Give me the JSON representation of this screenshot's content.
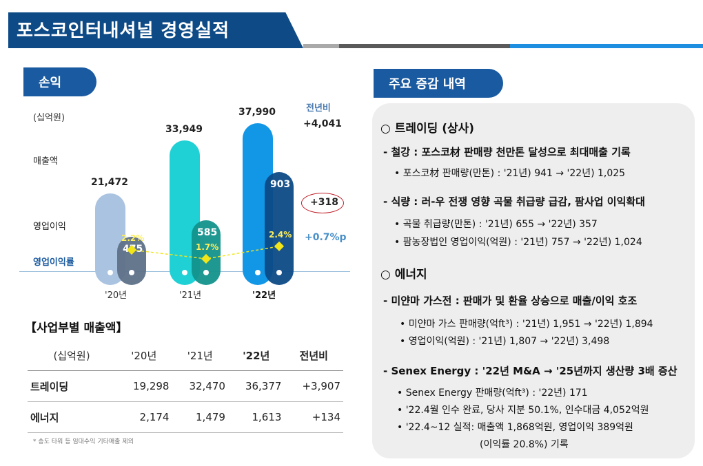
{
  "header": {
    "title": "포스코인터내셔널 경영실적"
  },
  "left": {
    "section_label": "손익",
    "unit": "(십억원)",
    "yoy_header": "전년비",
    "rows": {
      "revenue": "매출액",
      "op_income": "영업이익",
      "op_margin": "영업이익률"
    },
    "yoy": {
      "revenue": "+4,041",
      "op_income": "+318",
      "op_margin": "+0.7%p"
    }
  },
  "chart_data": {
    "type": "bar",
    "categories": [
      "'20년",
      "'21년",
      "'22년"
    ],
    "series": [
      {
        "name": "매출액",
        "values": [
          21472,
          33949,
          37990
        ],
        "labels": [
          "21,472",
          "33,949",
          "37,990"
        ]
      },
      {
        "name": "영업이익",
        "values": [
          475,
          585,
          903
        ],
        "labels": [
          "475",
          "585",
          "903"
        ]
      },
      {
        "name": "영업이익률",
        "values": [
          2.2,
          1.7,
          2.4
        ],
        "labels": [
          "2.2%",
          "1.7%",
          "2.4%"
        ]
      }
    ],
    "colors": {
      "revenue": [
        "#a9c3e0",
        "#1fd0d4",
        "#1296e6"
      ],
      "op_income": [
        "#5e7188",
        "#13928c",
        "#0d4a86"
      ],
      "margin_line": "#f2e61a"
    }
  },
  "segment": {
    "title": "【사업부별 매출액】",
    "header": [
      "(십억원)",
      "'20년",
      "'21년",
      "'22년",
      "전년비"
    ],
    "rows": [
      [
        "트레이딩",
        "19,298",
        "32,470",
        "36,377",
        "+3,907"
      ],
      [
        "에너지",
        "2,174",
        "1,479",
        "1,613",
        "+134"
      ]
    ],
    "footnote": "* 송도 타워 등 임대수익 기타매출 제외"
  },
  "right": {
    "section_label": "주요 증감 내역",
    "trading": {
      "title": "○ 트레이딩 (상사)",
      "items": [
        {
          "head": "- 철강 : 포스코材 판매량 천만톤 달성으로 최대매출 기록",
          "bullets": [
            "• 포스코材 판매량(만톤) : '21년) 941 → '22년) 1,025"
          ]
        },
        {
          "head": "- 식량 : 러-우 전쟁 영향 곡물 취급량 급감, 팜사업 이익확대",
          "bullets": [
            "• 곡물 취급량(만톤) : '21년) 655 → '22년) 357",
            "• 팜농장법인 영업이익(억원) : '21년) 757 → '22년) 1,024"
          ]
        }
      ]
    },
    "energy": {
      "title": "○ 에너지",
      "items": [
        {
          "head": "- 미얀마 가스전 : 판매가 및 환율 상승으로 매출/이익 호조",
          "bullets": [
            "• 미얀마 가스 판매량(억ft³) : '21년) 1,951 → '22년) 1,894",
            "• 영업이익(억원) : '21년) 1,807 → '22년) 3,498"
          ]
        },
        {
          "head": "- Senex Energy : '22년 M&A → '25년까지 생산량 3배 증산",
          "bullets": [
            "• Senex Energy 판매량(억ft³) : '22년) 171",
            "• '22.4월 인수 완료, 당사 지분 50.1%, 인수대금 4,052억원",
            "• '22.4~12 실적: 매출액 1,868억원, 영업이익 389억원"
          ],
          "tail": "(이익률 20.8%) 기록"
        }
      ]
    }
  }
}
